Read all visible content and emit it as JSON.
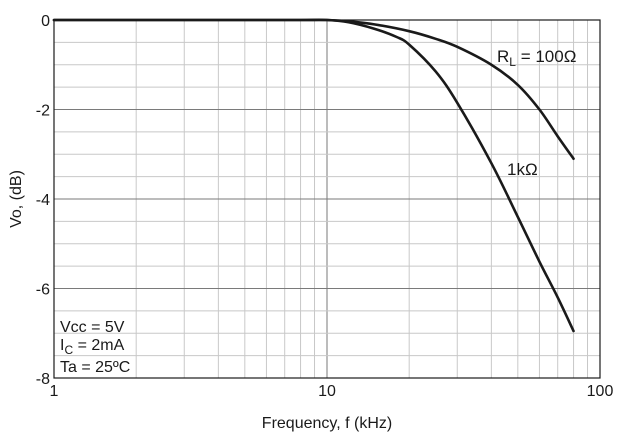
{
  "chart_data": {
    "type": "line",
    "title": "",
    "xlabel": "Frequency, f (kHz)",
    "ylabel": "Vo, (dB)",
    "xscale": "log",
    "xlim": [
      1,
      100
    ],
    "ylim": [
      -8,
      0
    ],
    "grid": true,
    "x_tick_labels": [
      "1",
      "10",
      "100"
    ],
    "y_tick_labels": [
      "0",
      "-2",
      "-4",
      "-6",
      "-8"
    ],
    "conditions": [
      "Vcc = 5V",
      "I_C = 2mA",
      "Ta = 25ºC"
    ],
    "condition_parts": {
      "vcc": "Vcc = 5V",
      "ic_main": "I",
      "ic_sub": "C",
      "ic_rest": " = 2mA",
      "ta": "Ta = 25ºC"
    },
    "series": [
      {
        "name": "R_L = 100Ω",
        "label_main": "R",
        "label_sub": "L",
        "label_rest": " = 100Ω",
        "color": "#1a1a1a",
        "x": [
          1,
          5,
          8,
          10,
          12,
          15,
          20,
          25,
          30,
          40,
          50,
          60,
          70,
          80
        ],
        "y": [
          0,
          0,
          0,
          0,
          -0.03,
          -0.1,
          -0.25,
          -0.42,
          -0.6,
          -1.0,
          -1.45,
          -2.0,
          -2.6,
          -3.1
        ]
      },
      {
        "name": "1kΩ",
        "label_main": "1kΩ",
        "color": "#1a1a1a",
        "x": [
          1,
          5,
          8,
          10,
          12,
          15,
          18,
          20,
          25,
          30,
          40,
          50,
          60,
          70,
          80
        ],
        "y": [
          0,
          0,
          0,
          0,
          -0.05,
          -0.2,
          -0.38,
          -0.55,
          -1.15,
          -1.85,
          -3.2,
          -4.4,
          -5.4,
          -6.2,
          -6.95
        ]
      }
    ]
  }
}
